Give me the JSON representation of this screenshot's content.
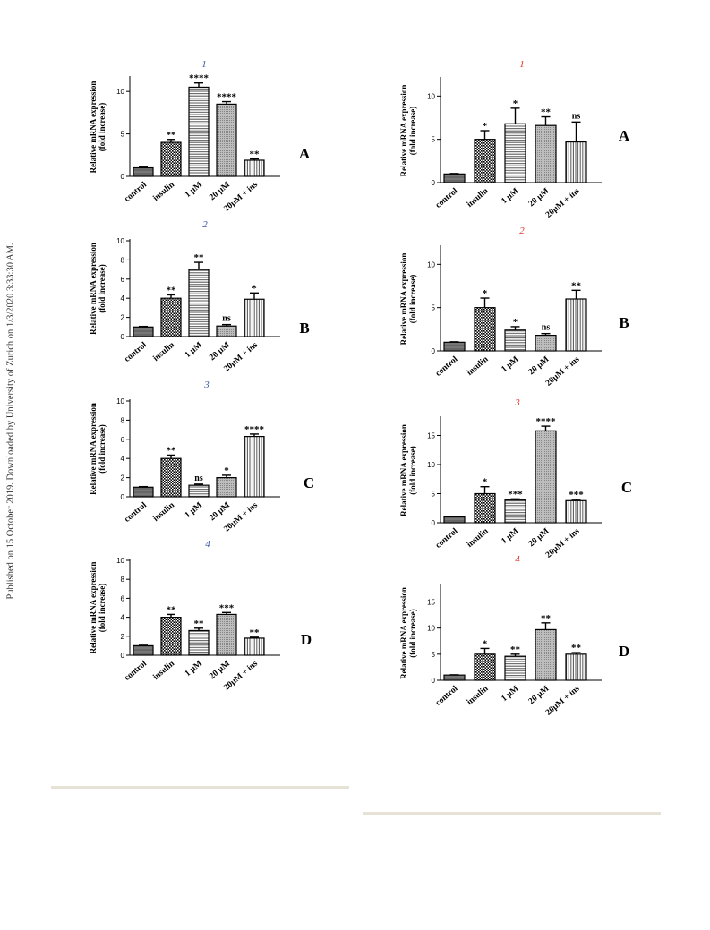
{
  "side_text": "Published on 15 October 2019. Downloaded by University of Zurich on 1/3/2020 3:33:30 AM.",
  "colors": {
    "left_title": "#3c5aa8",
    "right_title": "#e0352b",
    "axis": "#000000",
    "rule": "#e6e2d6"
  },
  "chart_data": [
    {
      "id": "L1",
      "type": "bar",
      "title": "1",
      "panel": "A",
      "categories": [
        "control",
        "insulin",
        "1 μM",
        "20 μM",
        "20μM + ins"
      ],
      "values": [
        1.0,
        4.0,
        10.5,
        8.5,
        1.9
      ],
      "errors": [
        0.08,
        0.35,
        0.5,
        0.3,
        0.15
      ],
      "significance": [
        "",
        "**",
        "****",
        "****",
        "**"
      ],
      "ylabel": [
        "Relative mRNA expression",
        "(fold increase)"
      ],
      "ylim": [
        0,
        11.6
      ],
      "yticks": [
        0,
        5,
        10
      ]
    },
    {
      "id": "L2",
      "type": "bar",
      "title": "2",
      "panel": "B",
      "categories": [
        "control",
        "insulin",
        "1 μM",
        "20 μM",
        "20μM + ins"
      ],
      "values": [
        1.0,
        4.0,
        7.0,
        1.1,
        3.9
      ],
      "errors": [
        0.06,
        0.35,
        0.75,
        0.15,
        0.65
      ],
      "significance": [
        "",
        "**",
        "**",
        "ns",
        "*"
      ],
      "ylabel": [
        "Relative mRNA expression",
        "(fold increase)"
      ],
      "ylim": [
        0,
        10
      ],
      "yticks": [
        0,
        2,
        4,
        6,
        8,
        10
      ]
    },
    {
      "id": "L3",
      "type": "bar",
      "title": "3",
      "panel": "C",
      "categories": [
        "control",
        "insulin",
        "1 μM",
        "20 μM",
        "20μM + ins"
      ],
      "values": [
        1.0,
        4.0,
        1.2,
        2.0,
        6.3
      ],
      "errors": [
        0.06,
        0.35,
        0.12,
        0.25,
        0.25
      ],
      "significance": [
        "",
        "**",
        "ns",
        "*",
        "****"
      ],
      "ylabel": [
        "Relative mRNA expression",
        "(fold increase)"
      ],
      "ylim": [
        0,
        10
      ],
      "yticks": [
        0,
        2,
        4,
        6,
        8,
        10
      ]
    },
    {
      "id": "L4",
      "type": "bar",
      "title": "4",
      "panel": "D",
      "categories": [
        "control",
        "insulin",
        "1 μM",
        "20 μM",
        "20μM + ins"
      ],
      "values": [
        1.0,
        4.0,
        2.6,
        4.3,
        1.8
      ],
      "errors": [
        0.05,
        0.3,
        0.25,
        0.2,
        0.1
      ],
      "significance": [
        "",
        "**",
        "**",
        "***",
        "**"
      ],
      "ylabel": [
        "Relative mRNA expression",
        "(fold increase)"
      ],
      "ylim": [
        0,
        10
      ],
      "yticks": [
        0,
        2,
        4,
        6,
        8,
        10
      ]
    },
    {
      "id": "R1",
      "type": "bar",
      "title": "1",
      "panel": "A",
      "categories": [
        "control",
        "insulin",
        "1 μM",
        "20 μM",
        "20μM + ins"
      ],
      "values": [
        1.0,
        5.0,
        6.8,
        6.6,
        4.7
      ],
      "errors": [
        0.05,
        1.0,
        1.8,
        1.0,
        2.3
      ],
      "significance": [
        "",
        "*",
        "*",
        "**",
        "ns"
      ],
      "ylabel": [
        "Relative mRNA expression",
        "(fold increase)"
      ],
      "ylim": [
        0,
        12
      ],
      "yticks": [
        0,
        5,
        10
      ]
    },
    {
      "id": "R2",
      "type": "bar",
      "title": "2",
      "panel": "B",
      "categories": [
        "control",
        "insulin",
        "1 μM",
        "20 μM",
        "20μM + ins"
      ],
      "values": [
        1.0,
        5.0,
        2.4,
        1.8,
        6.0
      ],
      "errors": [
        0.05,
        1.1,
        0.4,
        0.2,
        1.0
      ],
      "significance": [
        "",
        "*",
        "*",
        "ns",
        "**"
      ],
      "ylabel": [
        "Relative mRNA expression",
        "(fold increase)"
      ],
      "ylim": [
        0,
        12
      ],
      "yticks": [
        0,
        5,
        10
      ]
    },
    {
      "id": "R3",
      "type": "bar",
      "title": "3",
      "panel": "C",
      "categories": [
        "control",
        "insulin",
        "1 μM",
        "20 μM",
        "20μM + ins"
      ],
      "values": [
        1.0,
        5.0,
        3.9,
        15.8,
        3.8
      ],
      "errors": [
        0.05,
        1.2,
        0.2,
        0.8,
        0.2
      ],
      "significance": [
        "",
        "*",
        "***",
        "****",
        "***"
      ],
      "ylabel": [
        "Relative mRNA expression",
        "(fold increase)"
      ],
      "ylim": [
        0,
        18
      ],
      "yticks": [
        0,
        5,
        10,
        15
      ]
    },
    {
      "id": "R4",
      "type": "bar",
      "title": "4",
      "panel": "D",
      "categories": [
        "control",
        "insulin",
        "1 μM",
        "20 μM",
        "20μM + ins"
      ],
      "values": [
        1.0,
        5.0,
        4.6,
        9.7,
        5.0
      ],
      "errors": [
        0.05,
        1.1,
        0.4,
        1.3,
        0.3
      ],
      "significance": [
        "",
        "*",
        "**",
        "**",
        "**"
      ],
      "ylabel": [
        "Relative mRNA expression",
        "(fold increase)"
      ],
      "ylim": [
        0,
        18
      ],
      "yticks": [
        0,
        5,
        10,
        15
      ]
    }
  ]
}
